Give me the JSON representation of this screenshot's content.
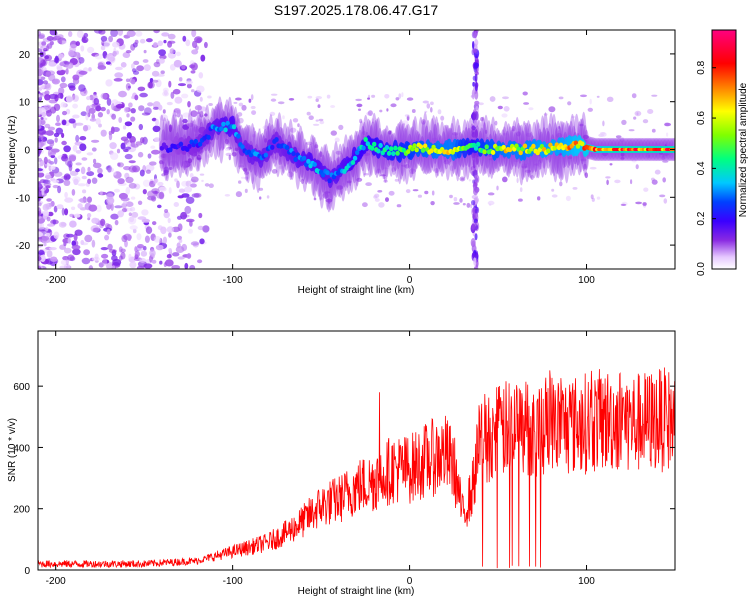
{
  "title": "S197.2025.178.06.47.G17",
  "chart_data": [
    {
      "type": "heatmap",
      "xlabel": "Height of straight line (km)",
      "ylabel": "Frequency (Hz)",
      "xlim": [
        -210,
        150
      ],
      "ylim": [
        -25,
        25
      ],
      "xticks": [
        -200,
        -100,
        0,
        100
      ],
      "yticks": [
        -20,
        -10,
        0,
        10,
        20
      ],
      "colorbar": {
        "label": "Normalized spectral amplitude",
        "range": [
          0,
          0.95
        ],
        "ticks": [
          0.0,
          0.2,
          0.4,
          0.6,
          0.8
        ],
        "tick_labels": [
          "0.0",
          "0.2",
          "0.4",
          "0.6",
          "0.8"
        ],
        "colormap": [
          "#ffffff",
          "#e6c8ff",
          "#8a2be2",
          "#3a00ff",
          "#0040ff",
          "#00c8ff",
          "#00ff80",
          "#80ff00",
          "#ffff00",
          "#ff8000",
          "#ff0000",
          "#ff0080"
        ]
      },
      "ridge": [
        {
          "x": -140,
          "y": 0.5,
          "amp": 0.2
        },
        {
          "x": -130,
          "y": 0.5,
          "amp": 0.25
        },
        {
          "x": -120,
          "y": 1.0,
          "amp": 0.28
        },
        {
          "x": -110,
          "y": 4.5,
          "amp": 0.35
        },
        {
          "x": -100,
          "y": 5.0,
          "amp": 0.4
        },
        {
          "x": -95,
          "y": 0.5,
          "amp": 0.3
        },
        {
          "x": -85,
          "y": -2.0,
          "amp": 0.35
        },
        {
          "x": -75,
          "y": 1.5,
          "amp": 0.3
        },
        {
          "x": -65,
          "y": -1.5,
          "amp": 0.35
        },
        {
          "x": -55,
          "y": -3.0,
          "amp": 0.4
        },
        {
          "x": -45,
          "y": -6.0,
          "amp": 0.35
        },
        {
          "x": -35,
          "y": -3.5,
          "amp": 0.4
        },
        {
          "x": -25,
          "y": 1.5,
          "amp": 0.45
        },
        {
          "x": -15,
          "y": 0.0,
          "amp": 0.5
        },
        {
          "x": -5,
          "y": -0.5,
          "amp": 0.55
        },
        {
          "x": 5,
          "y": 0.5,
          "amp": 0.65
        },
        {
          "x": 15,
          "y": 0.0,
          "amp": 0.7
        },
        {
          "x": 25,
          "y": 0.0,
          "amp": 0.7
        },
        {
          "x": 35,
          "y": 0.5,
          "amp": 0.5
        },
        {
          "x": 45,
          "y": 0.0,
          "amp": 0.65
        },
        {
          "x": 55,
          "y": 0.0,
          "amp": 0.7
        },
        {
          "x": 65,
          "y": 0.0,
          "amp": 0.7
        },
        {
          "x": 75,
          "y": 0.0,
          "amp": 0.75
        },
        {
          "x": 85,
          "y": 0.5,
          "amp": 0.75
        },
        {
          "x": 95,
          "y": 1.0,
          "amp": 0.8
        },
        {
          "x": 105,
          "y": 0.0,
          "amp": 0.85
        },
        {
          "x": 115,
          "y": 0.0,
          "amp": 0.9
        },
        {
          "x": 125,
          "y": 0.0,
          "amp": 0.9
        },
        {
          "x": 135,
          "y": 0.0,
          "amp": 0.9
        },
        {
          "x": 150,
          "y": 0.0,
          "amp": 0.9
        }
      ],
      "vertical_stripe_x": 37
    },
    {
      "type": "line",
      "xlabel": "Height of straight line (km)",
      "ylabel": "SNR (10 * v/v)",
      "xlim": [
        -210,
        150
      ],
      "ylim": [
        0,
        780
      ],
      "xticks": [
        -200,
        -100,
        0,
        100
      ],
      "yticks": [
        0,
        200,
        400,
        600
      ],
      "series": [
        {
          "color": "#ff0000",
          "envelope": [
            {
              "x": -210,
              "y": 20
            },
            {
              "x": -180,
              "y": 20
            },
            {
              "x": -150,
              "y": 20
            },
            {
              "x": -120,
              "y": 30
            },
            {
              "x": -100,
              "y": 60
            },
            {
              "x": -80,
              "y": 90
            },
            {
              "x": -70,
              "y": 120
            },
            {
              "x": -60,
              "y": 160
            },
            {
              "x": -50,
              "y": 210
            },
            {
              "x": -40,
              "y": 230
            },
            {
              "x": -30,
              "y": 270
            },
            {
              "x": -20,
              "y": 290
            },
            {
              "x": -10,
              "y": 330
            },
            {
              "x": 0,
              "y": 330
            },
            {
              "x": 10,
              "y": 360
            },
            {
              "x": 20,
              "y": 380
            },
            {
              "x": 25,
              "y": 340
            },
            {
              "x": 30,
              "y": 180
            },
            {
              "x": 35,
              "y": 250
            },
            {
              "x": 40,
              "y": 430
            },
            {
              "x": 50,
              "y": 450
            },
            {
              "x": 60,
              "y": 470
            },
            {
              "x": 70,
              "y": 460
            },
            {
              "x": 80,
              "y": 480
            },
            {
              "x": 90,
              "y": 470
            },
            {
              "x": 100,
              "y": 480
            },
            {
              "x": 110,
              "y": 490
            },
            {
              "x": 120,
              "y": 490
            },
            {
              "x": 130,
              "y": 480
            },
            {
              "x": 140,
              "y": 490
            },
            {
              "x": 150,
              "y": 490
            }
          ]
        }
      ]
    }
  ]
}
